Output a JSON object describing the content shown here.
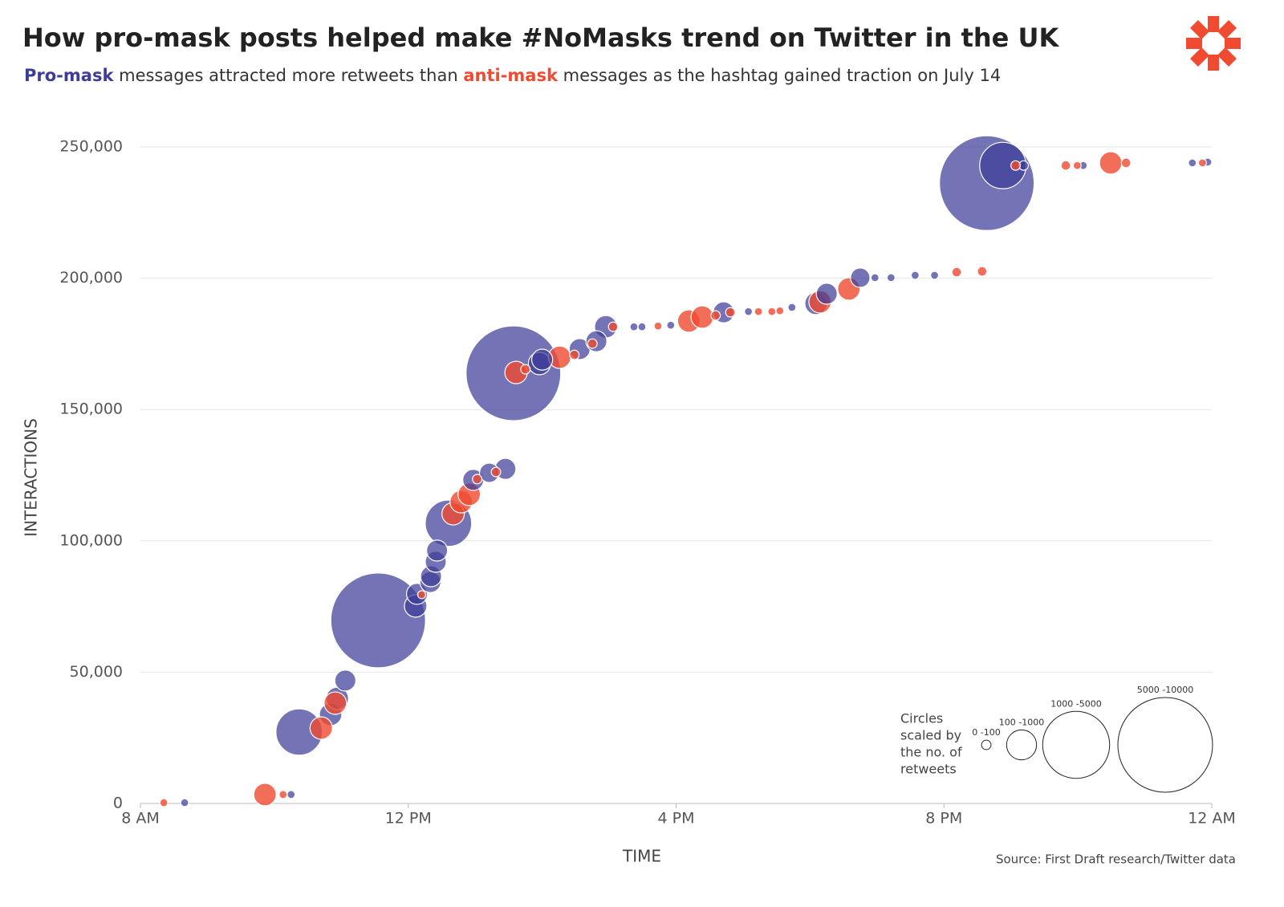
{
  "chart_data": {
    "type": "bubble",
    "title": "How pro-mask posts helped make #NoMasks trend on Twitter in the UK",
    "subtitle": [
      "messages attracted more retweets than",
      "messages as the hashtag gained traction on July 14"
    ],
    "x_label": "TIME",
    "y_label": "INTERACTIONS",
    "source": "Source: First Draft research/Twitter data",
    "xlim": [
      8,
      24
    ],
    "xticks": [
      {
        "value": 8,
        "label": "8 AM"
      },
      {
        "value": 12,
        "label": "12 PM"
      },
      {
        "value": 16,
        "label": "4 PM"
      },
      {
        "value": 20,
        "label": "8 PM"
      },
      {
        "value": 24,
        "label": "12 AM"
      }
    ],
    "ylim": [
      0,
      250000
    ],
    "yticks": [
      0,
      {
        "value": 50000,
        "label": "50,000"
      },
      {
        "value": 100000,
        "label": "100,000"
      },
      {
        "value": 150000,
        "label": "150,000"
      },
      {
        "value": 200000,
        "label": "200,000"
      },
      {
        "value": 250000,
        "label": "250,000"
      }
    ],
    "grid": true,
    "size_legend": {
      "title": [
        "Circles",
        "scaled by",
        "the no. of",
        "retweets"
      ],
      "items": [
        {
          "label": "0 -100",
          "size": 100
        },
        {
          "label": "100 -1000",
          "size": 1000
        },
        {
          "label": "1000 -5000",
          "size": 5000
        },
        {
          "label": "5000 -10000",
          "size": 10000
        }
      ]
    },
    "series": [
      {
        "name": "Pro-mask",
        "color": "#3d3d98",
        "x": [
          8.66,
          10.25,
          10.37,
          10.84,
          10.94,
          11.06,
          11.55,
          12.11,
          12.13,
          12.33,
          12.34,
          12.41,
          12.43,
          12.6,
          12.97,
          13.21,
          13.45,
          13.57,
          13.96,
          14.0,
          14.56,
          14.81,
          14.95,
          15.37,
          15.49,
          15.92,
          16.71,
          17.08,
          17.73,
          18.09,
          18.25,
          18.75,
          18.97,
          19.21,
          19.57,
          19.86,
          20.64,
          20.88,
          21.19,
          22.08,
          23.71,
          23.94
        ],
        "y": [
          300,
          3400,
          27200,
          33900,
          40000,
          46800,
          69700,
          75200,
          79800,
          84300,
          86500,
          92000,
          96300,
          106700,
          123200,
          125900,
          127400,
          163800,
          167500,
          169000,
          173000,
          176000,
          181500,
          181500,
          181500,
          182100,
          187000,
          187300,
          188900,
          190400,
          194100,
          200200,
          200200,
          200200,
          201100,
          201100,
          236200,
          242900,
          242900,
          242900,
          243900,
          244200
        ],
        "sizes": [
          70,
          70,
          2400,
          560,
          560,
          490,
          10000,
          560,
          490,
          490,
          490,
          490,
          490,
          2400,
          490,
          420,
          490,
          10000,
          560,
          490,
          490,
          490,
          560,
          70,
          70,
          70,
          490,
          70,
          70,
          560,
          490,
          420,
          70,
          70,
          70,
          70,
          10000,
          2400,
          100,
          70,
          70,
          70
        ]
      },
      {
        "name": "anti-mask",
        "color": "#f04a30",
        "x": [
          8.35,
          9.86,
          10.13,
          10.7,
          10.91,
          12.2,
          12.67,
          12.79,
          12.91,
          13.03,
          13.31,
          13.61,
          13.75,
          14.26,
          14.48,
          14.75,
          15.06,
          15.73,
          16.19,
          16.39,
          16.59,
          16.81,
          17.23,
          17.43,
          17.55,
          18.15,
          18.58,
          20.19,
          20.57,
          21.07,
          21.82,
          21.99,
          22.49,
          22.72,
          23.86
        ],
        "y": [
          300,
          3400,
          3400,
          28700,
          38200,
          79500,
          110300,
          114900,
          117700,
          123500,
          126200,
          164100,
          165300,
          169900,
          170800,
          175100,
          181500,
          181800,
          183700,
          185200,
          185800,
          187000,
          187300,
          187300,
          187600,
          191000,
          195900,
          202300,
          202600,
          242900,
          242900,
          242900,
          243900,
          243900,
          243900
        ],
        "sizes": [
          70,
          560,
          70,
          560,
          560,
          70,
          560,
          560,
          560,
          100,
          100,
          560,
          100,
          560,
          100,
          100,
          100,
          70,
          560,
          560,
          100,
          100,
          70,
          70,
          70,
          560,
          560,
          100,
          100,
          100,
          100,
          70,
          560,
          100,
          70
        ]
      }
    ]
  }
}
